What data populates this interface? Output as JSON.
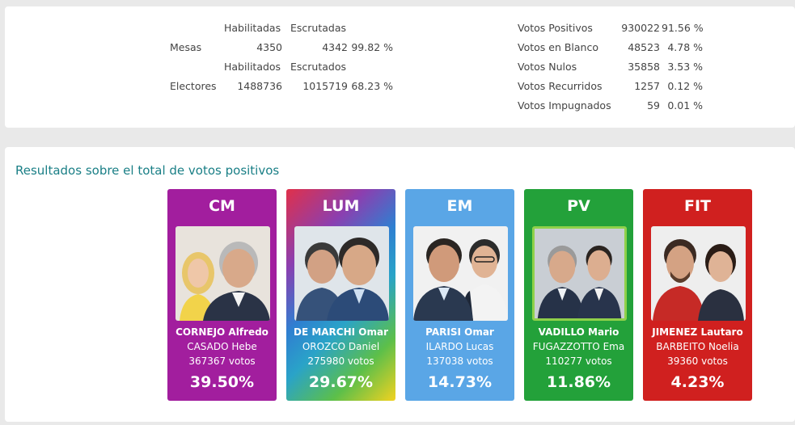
{
  "mesas": {
    "label": "Mesas",
    "col1_header": "Habilitadas",
    "col2_header": "Escrutadas",
    "habilitadas": "4350",
    "escrutadas": "4342",
    "pct": "99.82 %"
  },
  "electores": {
    "label": "Electores",
    "col1_header": "Habilitados",
    "col2_header": "Escrutados",
    "habilitados": "1488736",
    "escrutados": "1015719",
    "pct": "68.23 %"
  },
  "votos": [
    {
      "label": "Votos Positivos",
      "value": "930022",
      "pct": "91.56 %"
    },
    {
      "label": "Votos en Blanco",
      "value": "48523",
      "pct": "4.78 %"
    },
    {
      "label": "Votos Nulos",
      "value": "35858",
      "pct": "3.53 %"
    },
    {
      "label": "Votos Recurridos",
      "value": "1257",
      "pct": "0.12 %"
    },
    {
      "label": "Votos Impugnados",
      "value": "59",
      "pct": "0.01 %"
    }
  ],
  "results": {
    "title": "Resultados sobre el total de votos positivos",
    "cards": [
      {
        "party": "CM",
        "candidate": "CORNEJO Alfredo",
        "vice": "CASADO Hebe",
        "votes": "367367 votos",
        "pct": "39.50%",
        "color": "#a21e9e"
      },
      {
        "party": "LUM",
        "candidate": "DE MARCHI Omar",
        "vice": "OROZCO Daniel",
        "votes": "275980 votos",
        "pct": "29.67%",
        "color": "#2f7fd1"
      },
      {
        "party": "EM",
        "candidate": "PARISI Omar",
        "vice": "ILARDO Lucas",
        "votes": "137038 votos",
        "pct": "14.73%",
        "color": "#5aa6e6"
      },
      {
        "party": "PV",
        "candidate": "VADILLO Mario",
        "vice": "FUGAZZOTTO Ema",
        "votes": "110277 votos",
        "pct": "11.86%",
        "color": "#23a13a"
      },
      {
        "party": "FIT",
        "candidate": "JIMENEZ Lautaro",
        "vice": "BARBEITO Noelia",
        "votes": "39360 votos",
        "pct": "4.23%",
        "color": "#d0201f"
      }
    ]
  }
}
